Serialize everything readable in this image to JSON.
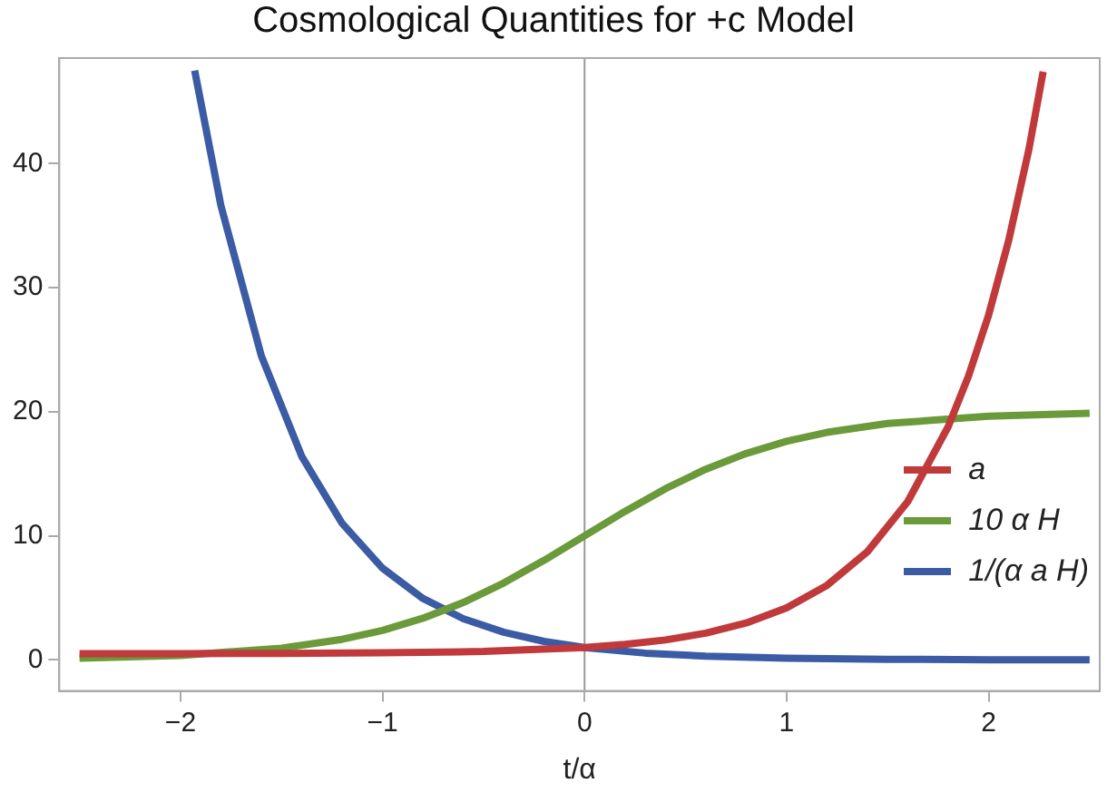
{
  "chart_data": {
    "type": "line",
    "title": "Cosmological Quantities for +c Model",
    "xlabel": "t/α",
    "xlim": [
      -2.6,
      2.55
    ],
    "xticks": [
      -2,
      -1,
      0,
      1,
      2
    ],
    "ylim": [
      -2.5,
      48.5
    ],
    "yticks": [
      0,
      10,
      20,
      30,
      40
    ],
    "grid": false,
    "legend": "right",
    "marker": "none",
    "line_style": "solid",
    "ref_lines": [
      {
        "axis": "x",
        "value": 0,
        "color": "#999999"
      }
    ],
    "series": [
      {
        "name": "a",
        "color": "#c0393b",
        "x": [
          -2.5,
          -2,
          -1.5,
          -1,
          -0.5,
          0,
          0.2,
          0.4,
          0.6,
          0.8,
          1,
          1.2,
          1.4,
          1.6,
          1.8,
          1.9,
          2,
          2.1,
          2.2,
          2.27
        ],
        "values": [
          0.5,
          0.51,
          0.53,
          0.57,
          0.68,
          1,
          1.25,
          1.61,
          2.16,
          2.98,
          4.19,
          6.01,
          8.72,
          12.77,
          18.8,
          22.85,
          27.8,
          33.85,
          41.2,
          47.4
        ]
      },
      {
        "name": "10 α H",
        "color": "#6a9a3a",
        "x": [
          -2.5,
          -2,
          -1.5,
          -1.2,
          -1,
          -0.8,
          -0.6,
          -0.4,
          -0.2,
          0,
          0.2,
          0.4,
          0.6,
          0.8,
          1,
          1.2,
          1.5,
          2,
          2.5
        ],
        "values": [
          0.13,
          0.36,
          0.95,
          1.66,
          2.38,
          3.36,
          4.63,
          6.2,
          8.03,
          10,
          11.97,
          13.8,
          15.37,
          16.64,
          17.62,
          18.34,
          19.05,
          19.64,
          19.87
        ]
      },
      {
        "name": "1/(α a H)",
        "color": "#3b5ba5",
        "x": [
          -1.93,
          -1.8,
          -1.6,
          -1.4,
          -1.2,
          -1,
          -0.8,
          -0.6,
          -0.4,
          -0.2,
          0,
          0.3,
          0.6,
          1,
          1.5,
          2,
          2.5
        ],
        "values": [
          47.5,
          36.6,
          24.5,
          16.4,
          11,
          7.39,
          4.95,
          3.32,
          2.23,
          1.49,
          1,
          0.55,
          0.3,
          0.14,
          0.05,
          0.02,
          0.01
        ]
      }
    ]
  }
}
